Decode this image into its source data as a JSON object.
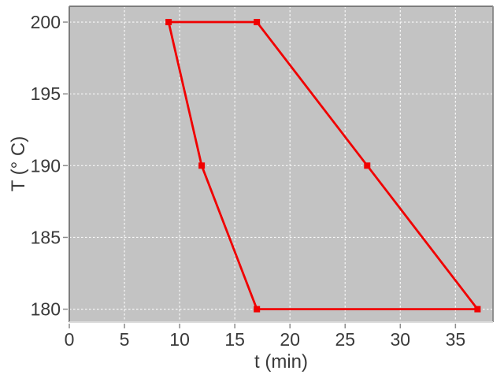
{
  "chart": {
    "colors": {
      "canvas_background": "#ffffff",
      "plot_background": "#c3c3c3",
      "gridline": "#f8f8f8",
      "frame_dark": "#7d7d7d",
      "frame_light": "#dcdcdc",
      "tick_mark": "#8c8c8c",
      "text": "#3a3a3a",
      "series": "#f00000"
    }
  },
  "chart_data": {
    "type": "line",
    "title": "",
    "xlabel": "t (min)",
    "ylabel": "T (° C)",
    "xlim": [
      0,
      38.4
    ],
    "ylim": [
      179.1,
      201.1
    ],
    "x_ticks": [
      0,
      5,
      10,
      15,
      20,
      25,
      30,
      35
    ],
    "y_ticks": [
      180,
      185,
      190,
      195,
      200
    ],
    "grid": true,
    "grid_style": "dashed-white",
    "legend": false,
    "series": [
      {
        "name": "temperature-program-window",
        "color": "#f00000",
        "marker": "square",
        "closed": true,
        "points": [
          [
            9,
            200
          ],
          [
            17,
            200
          ],
          [
            27,
            190
          ],
          [
            37,
            180
          ],
          [
            17,
            180
          ],
          [
            12,
            190
          ]
        ]
      }
    ]
  }
}
